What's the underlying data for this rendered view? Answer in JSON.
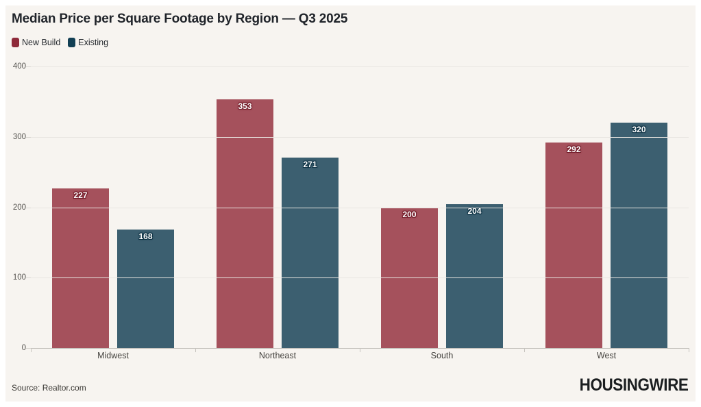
{
  "chart_data": {
    "type": "bar",
    "title": "Median Price per Square Footage by Region — Q3 2025",
    "categories": [
      "Midwest",
      "Northeast",
      "South",
      "West"
    ],
    "series": [
      {
        "name": "New Build",
        "legend_color": "#8e2a3a",
        "bar_color": "#a5515c",
        "label_halo": "#731d2a",
        "values": [
          227,
          353,
          200,
          292
        ]
      },
      {
        "name": "Existing",
        "legend_color": "#123f54",
        "bar_color": "#3c5f70",
        "label_halo": "#0e3244",
        "values": [
          168,
          271,
          204,
          320
        ]
      }
    ],
    "ylim": [
      0,
      400
    ],
    "yticks": [
      0,
      100,
      200,
      300,
      400
    ],
    "grid": true,
    "legend_position": "top-left",
    "xlabel": "",
    "ylabel": ""
  },
  "footer": {
    "source": "Source: Realtor.com",
    "logo": "HOUSINGWIRE"
  },
  "colors": {
    "card_background": "#f7f4f0",
    "page_background": "#ffffff",
    "gridline": "#e9e6e1",
    "baseline": "#c6c3be"
  }
}
